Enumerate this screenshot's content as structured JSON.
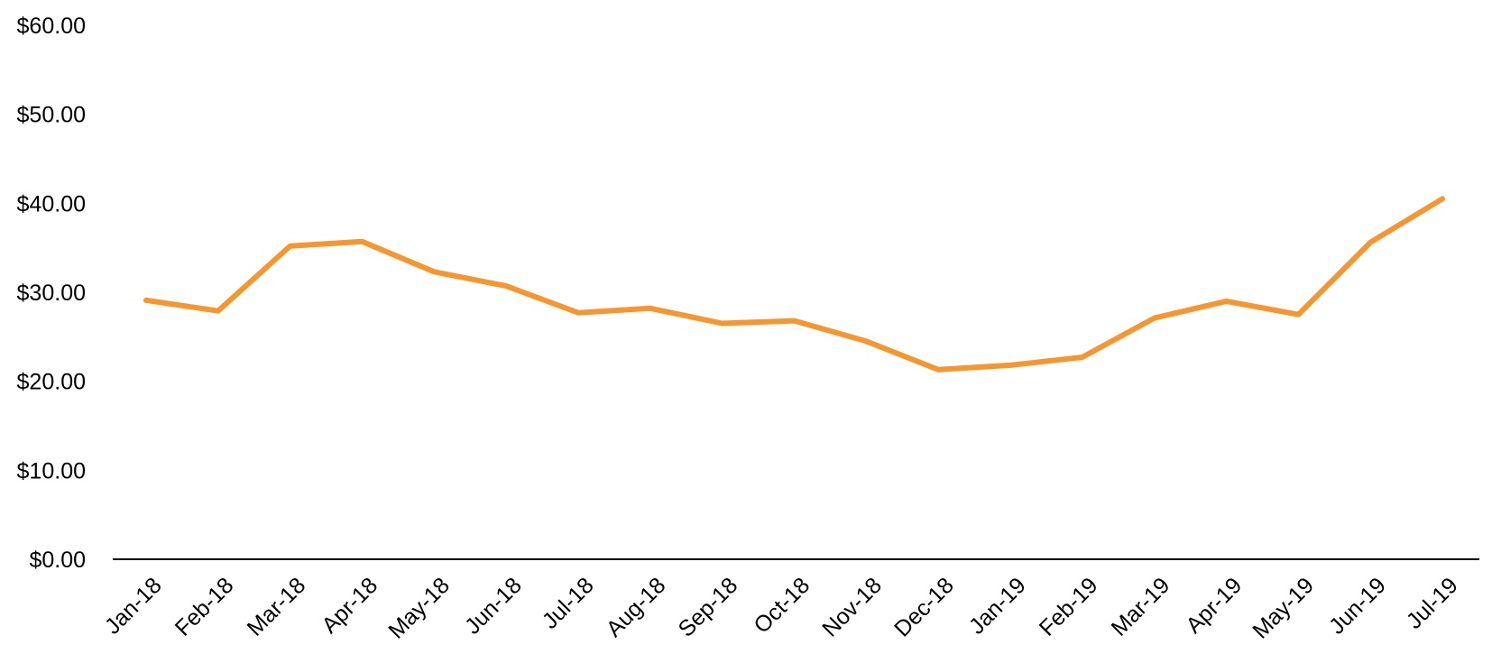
{
  "chart_data": {
    "type": "line",
    "title": "",
    "xlabel": "",
    "ylabel": "",
    "categories": [
      "Jan-18",
      "Feb-18",
      "Mar-18",
      "Apr-18",
      "May-18",
      "Jun-18",
      "Jul-18",
      "Aug-18",
      "Sep-18",
      "Oct-18",
      "Nov-18",
      "Dec-18",
      "Jan-19",
      "Feb-19",
      "Mar-19",
      "Apr-19",
      "May-19",
      "Jun-19",
      "Jul-19"
    ],
    "series": [
      {
        "values": [
          29.1,
          27.9,
          35.2,
          35.7,
          32.3,
          30.7,
          27.7,
          28.2,
          26.5,
          26.8,
          24.5,
          21.3,
          21.8,
          22.7,
          27.1,
          29.0,
          27.5,
          35.6,
          40.5
        ],
        "color": "#F7952F"
      }
    ],
    "ylim": [
      0,
      60
    ],
    "y_ticks": [
      0,
      10,
      20,
      30,
      40,
      50,
      60
    ],
    "y_tick_labels": [
      "$0.00",
      "$10.00",
      "$20.00",
      "$30.00",
      "$40.00",
      "$50.00",
      "$60.00"
    ],
    "grid": false,
    "legend": "none"
  }
}
